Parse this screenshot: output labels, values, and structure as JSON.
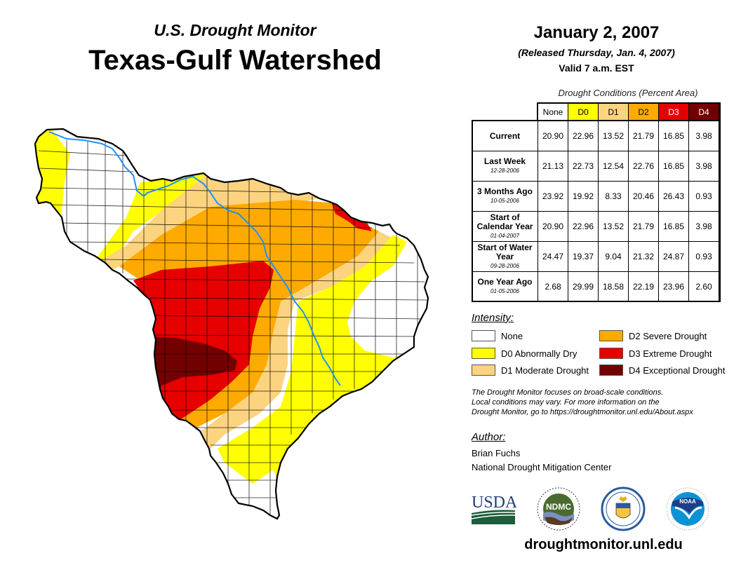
{
  "header": {
    "subtitle": "U.S. Drought Monitor",
    "title": "Texas-Gulf Watershed"
  },
  "date_block": {
    "date": "January 2, 2007",
    "released": "(Released Thursday, Jan. 4, 2007)",
    "valid": "Valid 7 a.m. EST"
  },
  "table": {
    "caption": "Drought Conditions (Percent Area)",
    "columns": [
      {
        "label": "None",
        "color": "#ffffff",
        "text_color": "#000000"
      },
      {
        "label": "D0",
        "color": "#ffff00",
        "text_color": "#000000"
      },
      {
        "label": "D1",
        "color": "#fcd37f",
        "text_color": "#000000"
      },
      {
        "label": "D2",
        "color": "#ffaa00",
        "text_color": "#000000"
      },
      {
        "label": "D3",
        "color": "#e60000",
        "text_color": "#ffffff"
      },
      {
        "label": "D4",
        "color": "#730000",
        "text_color": "#ffffff"
      }
    ],
    "rows": [
      {
        "label": "Current",
        "date": "",
        "values": [
          "20.90",
          "22.96",
          "13.52",
          "21.79",
          "16.85",
          "3.98"
        ]
      },
      {
        "label": "Last Week",
        "date": "12-28-2006",
        "values": [
          "21.13",
          "22.73",
          "12.54",
          "22.76",
          "16.85",
          "3.98"
        ]
      },
      {
        "label": "3 Months Ago",
        "date": "10-05-2006",
        "values": [
          "23.92",
          "19.92",
          "8.33",
          "20.46",
          "26.43",
          "0.93"
        ]
      },
      {
        "label": "Start of Calendar Year",
        "date": "01-04-2007",
        "values": [
          "20.90",
          "22.96",
          "13.52",
          "21.79",
          "16.85",
          "3.98"
        ]
      },
      {
        "label": "Start of Water Year",
        "date": "09-28-2006",
        "values": [
          "24.47",
          "19.37",
          "9.04",
          "21.32",
          "24.87",
          "0.93"
        ]
      },
      {
        "label": "One Year Ago",
        "date": "01-05-2006",
        "values": [
          "2.68",
          "29.99",
          "18.58",
          "22.19",
          "23.96",
          "2.60"
        ]
      }
    ]
  },
  "legend": {
    "title": "Intensity:",
    "items": [
      {
        "label": "None",
        "color": "#ffffff"
      },
      {
        "label": "D0 Abnormally Dry",
        "color": "#ffff00"
      },
      {
        "label": "D1 Moderate Drought",
        "color": "#fcd37f"
      },
      {
        "label": "D2 Severe Drought",
        "color": "#ffaa00"
      },
      {
        "label": "D3 Extreme Drought",
        "color": "#e60000"
      },
      {
        "label": "D4 Exceptional Drought",
        "color": "#730000"
      }
    ]
  },
  "note": {
    "line1": "The Drought Monitor focuses on broad-scale conditions.",
    "line2": "Local conditions may vary. For more information on the",
    "line3": "Drought Monitor, go to https://droughtmonitor.unl.edu/About.aspx"
  },
  "author": {
    "title": "Author:",
    "name": "Brian Fuchs",
    "org": "National Drought Mitigation Center"
  },
  "logos": {
    "usda": "USDA",
    "ndmc": "NDMC",
    "noaa": "NOAA"
  },
  "footer": {
    "url": "droughtmonitor.unl.edu"
  },
  "map": {
    "river_color": "#1e90ff",
    "region": "Texas-Gulf Watershed"
  }
}
